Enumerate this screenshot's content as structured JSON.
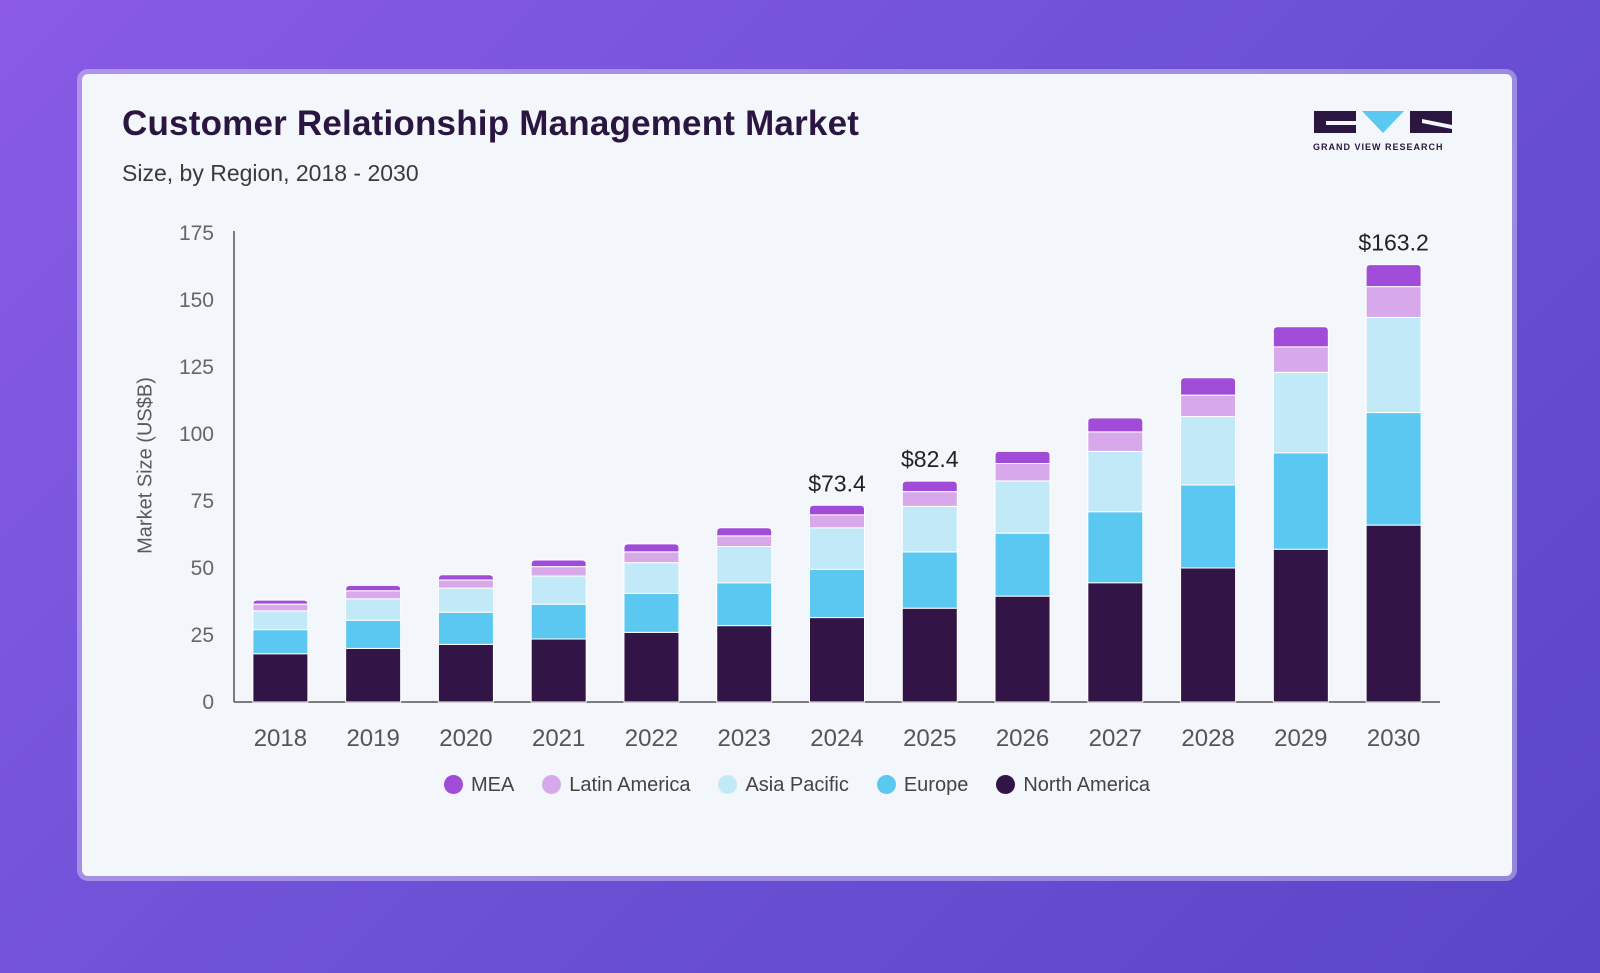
{
  "title": "Customer Relationship Management Market",
  "subtitle": "Size, by Region, 2018 - 2030",
  "logo": {
    "text": "GRAND VIEW RESEARCH",
    "icon": "gvr-logo-icon"
  },
  "colors": {
    "MEA": "#a04cd8",
    "Latin America": "#d7a9ea",
    "Asia Pacific": "#c2e9f8",
    "Europe": "#5bc8f2",
    "North America": "#321446"
  },
  "chart_data": {
    "type": "bar",
    "stacked": true,
    "categories": [
      "2018",
      "2019",
      "2020",
      "2021",
      "2022",
      "2023",
      "2024",
      "2025",
      "2026",
      "2027",
      "2028",
      "2029",
      "2030"
    ],
    "series": [
      {
        "name": "North America",
        "values": [
          18,
          20,
          21.5,
          23.5,
          26,
          28.5,
          31.5,
          35,
          39.5,
          44.5,
          50,
          57,
          66
        ]
      },
      {
        "name": "Europe",
        "values": [
          9,
          10.5,
          12,
          13,
          14.5,
          16,
          18,
          21,
          23.5,
          26.5,
          31,
          36,
          42
        ]
      },
      {
        "name": "Asia Pacific",
        "values": [
          7,
          8,
          9,
          10.5,
          11.5,
          13.5,
          15.5,
          17,
          19.5,
          22.5,
          25.5,
          30,
          35.5
        ]
      },
      {
        "name": "Latin America",
        "values": [
          2.5,
          3,
          3,
          3.5,
          4,
          4,
          4.8,
          5.5,
          6.5,
          7.3,
          8,
          9.5,
          11.5
        ]
      },
      {
        "name": "MEA",
        "values": [
          1.5,
          2,
          2,
          2.5,
          3,
          3,
          3.6,
          3.9,
          4.5,
          5.2,
          6.5,
          7.5,
          8.2
        ]
      }
    ],
    "totals_labels": [
      {
        "category": "2024",
        "label": "$73.4"
      },
      {
        "category": "2025",
        "label": "$82.4"
      },
      {
        "category": "2030",
        "label": "$163.2"
      }
    ],
    "xlabel": "",
    "ylabel": "Market Size (US$B)",
    "ylim": [
      0,
      175
    ],
    "yticks": [
      "0",
      "25",
      "50",
      "75",
      "100",
      "125",
      "150",
      "175"
    ],
    "grid": false,
    "legend": {
      "position": "bottom",
      "entries": [
        "MEA",
        "Latin America",
        "Asia Pacific",
        "Europe",
        "North America"
      ]
    }
  }
}
